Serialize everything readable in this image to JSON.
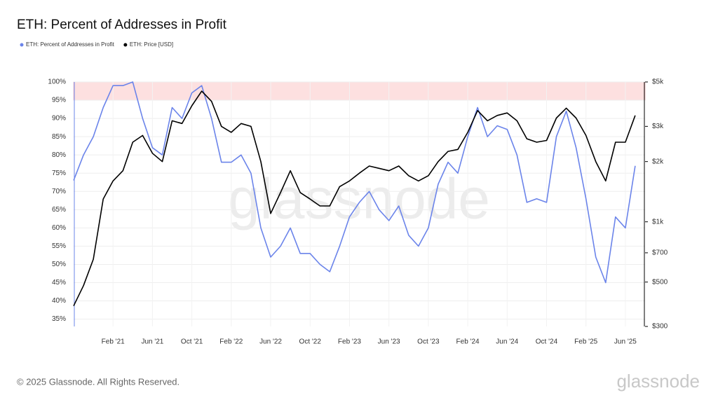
{
  "chart_data": {
    "type": "line",
    "title": "ETH: Percent of Addresses in Profit",
    "x": [
      "2020-10",
      "2020-11",
      "2020-12",
      "2021-01",
      "2021-02",
      "2021-03",
      "2021-04",
      "2021-05",
      "2021-06",
      "2021-07",
      "2021-08",
      "2021-09",
      "2021-10",
      "2021-11",
      "2021-12",
      "2022-01",
      "2022-02",
      "2022-03",
      "2022-04",
      "2022-05",
      "2022-06",
      "2022-07",
      "2022-08",
      "2022-09",
      "2022-10",
      "2022-11",
      "2022-12",
      "2023-01",
      "2023-02",
      "2023-03",
      "2023-04",
      "2023-05",
      "2023-06",
      "2023-07",
      "2023-08",
      "2023-09",
      "2023-10",
      "2023-11",
      "2023-12",
      "2024-01",
      "2024-02",
      "2024-03",
      "2024-04",
      "2024-05",
      "2024-06",
      "2024-07",
      "2024-08",
      "2024-09",
      "2024-10",
      "2024-11",
      "2024-12",
      "2025-01",
      "2025-02",
      "2025-03",
      "2025-04",
      "2025-05",
      "2025-06",
      "2025-07"
    ],
    "series": [
      {
        "name": "ETH: Percent of Addresses in Profit",
        "color": "#6b84ea",
        "values": [
          73,
          80,
          85,
          93,
          99,
          99,
          100,
          90,
          82,
          80,
          93,
          90,
          97,
          99,
          90,
          78,
          78,
          80,
          75,
          60,
          52,
          55,
          60,
          53,
          53,
          50,
          48,
          55,
          63,
          67,
          70,
          65,
          62,
          66,
          58,
          55,
          60,
          72,
          78,
          75,
          85,
          93,
          85,
          88,
          87,
          80,
          67,
          68,
          67,
          85,
          92,
          82,
          68,
          52,
          45,
          63,
          60,
          77
        ]
      },
      {
        "name": "ETH: Price [USD]",
        "color": "#000000",
        "axis": "y2",
        "values": [
          380,
          480,
          650,
          1300,
          1600,
          1800,
          2500,
          2700,
          2200,
          2000,
          3200,
          3100,
          3800,
          4500,
          4000,
          3000,
          2800,
          3100,
          3000,
          2000,
          1100,
          1400,
          1800,
          1400,
          1300,
          1200,
          1200,
          1500,
          1600,
          1750,
          1900,
          1850,
          1800,
          1900,
          1700,
          1600,
          1700,
          2000,
          2250,
          2300,
          2800,
          3600,
          3200,
          3400,
          3500,
          3200,
          2600,
          2500,
          2550,
          3300,
          3700,
          3300,
          2700,
          2000,
          1600,
          2500,
          2500,
          3400
        ]
      }
    ],
    "xlim": [
      "2020-10",
      "2025-08"
    ],
    "xticks": [
      {
        "value": "2021-02",
        "label": "Feb '21"
      },
      {
        "value": "2021-06",
        "label": "Jun '21"
      },
      {
        "value": "2021-10",
        "label": "Oct '21"
      },
      {
        "value": "2022-02",
        "label": "Feb '22"
      },
      {
        "value": "2022-06",
        "label": "Jun '22"
      },
      {
        "value": "2022-10",
        "label": "Oct '22"
      },
      {
        "value": "2023-02",
        "label": "Feb '23"
      },
      {
        "value": "2023-06",
        "label": "Jun '23"
      },
      {
        "value": "2023-10",
        "label": "Oct '23"
      },
      {
        "value": "2024-02",
        "label": "Feb '24"
      },
      {
        "value": "2024-06",
        "label": "Jun '24"
      },
      {
        "value": "2024-10",
        "label": "Oct '24"
      },
      {
        "value": "2025-02",
        "label": "Feb '25"
      },
      {
        "value": "2025-06",
        "label": "Jun '25"
      }
    ],
    "ylim": [
      33,
      100
    ],
    "yticks": [
      {
        "value": 35,
        "label": "35%"
      },
      {
        "value": 40,
        "label": "40%"
      },
      {
        "value": 45,
        "label": "45%"
      },
      {
        "value": 50,
        "label": "50%"
      },
      {
        "value": 55,
        "label": "55%"
      },
      {
        "value": 60,
        "label": "60%"
      },
      {
        "value": 65,
        "label": "65%"
      },
      {
        "value": 70,
        "label": "70%"
      },
      {
        "value": 75,
        "label": "75%"
      },
      {
        "value": 80,
        "label": "80%"
      },
      {
        "value": 85,
        "label": "85%"
      },
      {
        "value": 90,
        "label": "90%"
      },
      {
        "value": 95,
        "label": "95%"
      },
      {
        "value": 100,
        "label": "100%"
      }
    ],
    "y2lim": [
      300,
      5000
    ],
    "y2log": true,
    "y2ticks": [
      {
        "value": 300,
        "label": "$300"
      },
      {
        "value": 500,
        "label": "$500"
      },
      {
        "value": 700,
        "label": "$700"
      },
      {
        "value": 1000,
        "label": "$1k"
      },
      {
        "value": 2000,
        "label": "$2k"
      },
      {
        "value": 3000,
        "label": "$3k"
      },
      {
        "value": 5000,
        "label": "$5k"
      }
    ],
    "highlight_range": [
      95,
      100
    ],
    "highlight_color": "#fde0e0",
    "grid": true,
    "legend": "top-left"
  },
  "watermark": "glassnode",
  "footer": "© 2025 Glassnode. All Rights Reserved.",
  "brand": "glassnode"
}
